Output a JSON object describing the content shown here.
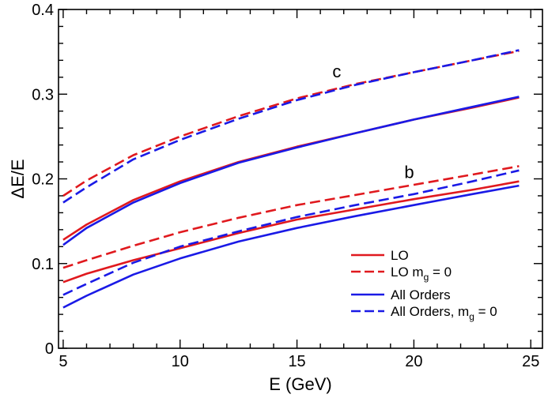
{
  "chart_data": {
    "type": "line",
    "title": "",
    "xlabel": "E (GeV)",
    "ylabel": "ΔE/E",
    "xlim": [
      4.8,
      25.5
    ],
    "ylim": [
      0,
      0.4
    ],
    "xticks": [
      5,
      10,
      15,
      20,
      25
    ],
    "xtick_labels": [
      "5",
      "10",
      "15",
      "20",
      "25"
    ],
    "yticks": [
      0,
      0.1,
      0.2,
      0.3,
      0.4
    ],
    "ytick_labels": [
      "0",
      "0.1",
      "0.2",
      "0.3",
      "0.4"
    ],
    "grid": false,
    "legend_position": "bottom-right",
    "colors": {
      "lo": "#e0191e",
      "all_orders": "#1a1ae6"
    },
    "annotations": [
      {
        "id": "c",
        "text": "c",
        "x": 16.7,
        "y": 0.32
      },
      {
        "id": "b",
        "text": "b",
        "x": 19.8,
        "y": 0.201
      }
    ],
    "legend": [
      {
        "label": "LO",
        "sub": "",
        "suffix": "",
        "color": "#e0191e",
        "style": "solid"
      },
      {
        "label": "LO m",
        "sub": "g",
        "suffix": " = 0",
        "color": "#e0191e",
        "style": "dashed"
      },
      {
        "label": "All Orders",
        "sub": "",
        "suffix": "",
        "color": "#1a1ae6",
        "style": "solid"
      },
      {
        "label": "All Orders, m",
        "sub": "g",
        "suffix": " = 0",
        "color": "#1a1ae6",
        "style": "dashed"
      }
    ],
    "series": [
      {
        "name": "LO (c)",
        "group": "c",
        "color": "#e0191e",
        "style": "solid",
        "x": [
          5,
          6,
          8,
          10,
          12.5,
          15,
          17.5,
          20,
          22.5,
          24.5
        ],
        "y": [
          0.128,
          0.146,
          0.175,
          0.197,
          0.22,
          0.238,
          0.254,
          0.27,
          0.284,
          0.296
        ]
      },
      {
        "name": "LO m_g = 0 (c)",
        "group": "c",
        "color": "#e0191e",
        "style": "dashed",
        "x": [
          5,
          6,
          8,
          10,
          12.5,
          15,
          17.5,
          20,
          22.5,
          24.5
        ],
        "y": [
          0.18,
          0.198,
          0.228,
          0.25,
          0.274,
          0.295,
          0.312,
          0.326,
          0.34,
          0.351
        ]
      },
      {
        "name": "All Orders (c)",
        "group": "c",
        "color": "#1a1ae6",
        "style": "solid",
        "x": [
          5,
          6,
          8,
          10,
          12.5,
          15,
          17.5,
          20,
          22.5,
          24.5
        ],
        "y": [
          0.122,
          0.142,
          0.172,
          0.195,
          0.219,
          0.237,
          0.254,
          0.27,
          0.285,
          0.297
        ]
      },
      {
        "name": "All Orders, m_g = 0 (c)",
        "group": "c",
        "color": "#1a1ae6",
        "style": "dashed",
        "x": [
          5,
          6,
          8,
          10,
          12.5,
          15,
          17.5,
          20,
          22.5,
          24.5
        ],
        "y": [
          0.172,
          0.19,
          0.223,
          0.246,
          0.271,
          0.293,
          0.311,
          0.326,
          0.34,
          0.352
        ]
      },
      {
        "name": "LO (b)",
        "group": "b",
        "color": "#e0191e",
        "style": "solid",
        "x": [
          5,
          6,
          8,
          10,
          12.5,
          15,
          17.5,
          20,
          22.5,
          24.5
        ],
        "y": [
          0.078,
          0.088,
          0.104,
          0.118,
          0.136,
          0.152,
          0.164,
          0.176,
          0.187,
          0.197
        ]
      },
      {
        "name": "LO m_g = 0 (b)",
        "group": "b",
        "color": "#e0191e",
        "style": "dashed",
        "x": [
          5,
          6,
          8,
          10,
          12.5,
          15,
          17.5,
          20,
          22.5,
          24.5
        ],
        "y": [
          0.095,
          0.104,
          0.121,
          0.137,
          0.154,
          0.169,
          0.181,
          0.193,
          0.205,
          0.215
        ]
      },
      {
        "name": "All Orders (b)",
        "group": "b",
        "color": "#1a1ae6",
        "style": "solid",
        "x": [
          5,
          6,
          8,
          10,
          12.5,
          15,
          17.5,
          20,
          22.5,
          24.5
        ],
        "y": [
          0.048,
          0.062,
          0.087,
          0.106,
          0.126,
          0.142,
          0.156,
          0.169,
          0.182,
          0.192
        ]
      },
      {
        "name": "All Orders, m_g = 0 (b)",
        "group": "b",
        "color": "#1a1ae6",
        "style": "dashed",
        "x": [
          5,
          6,
          8,
          10,
          12.5,
          15,
          17.5,
          20,
          22.5,
          24.5
        ],
        "y": [
          0.063,
          0.076,
          0.101,
          0.12,
          0.138,
          0.155,
          0.169,
          0.182,
          0.197,
          0.21
        ]
      }
    ]
  }
}
